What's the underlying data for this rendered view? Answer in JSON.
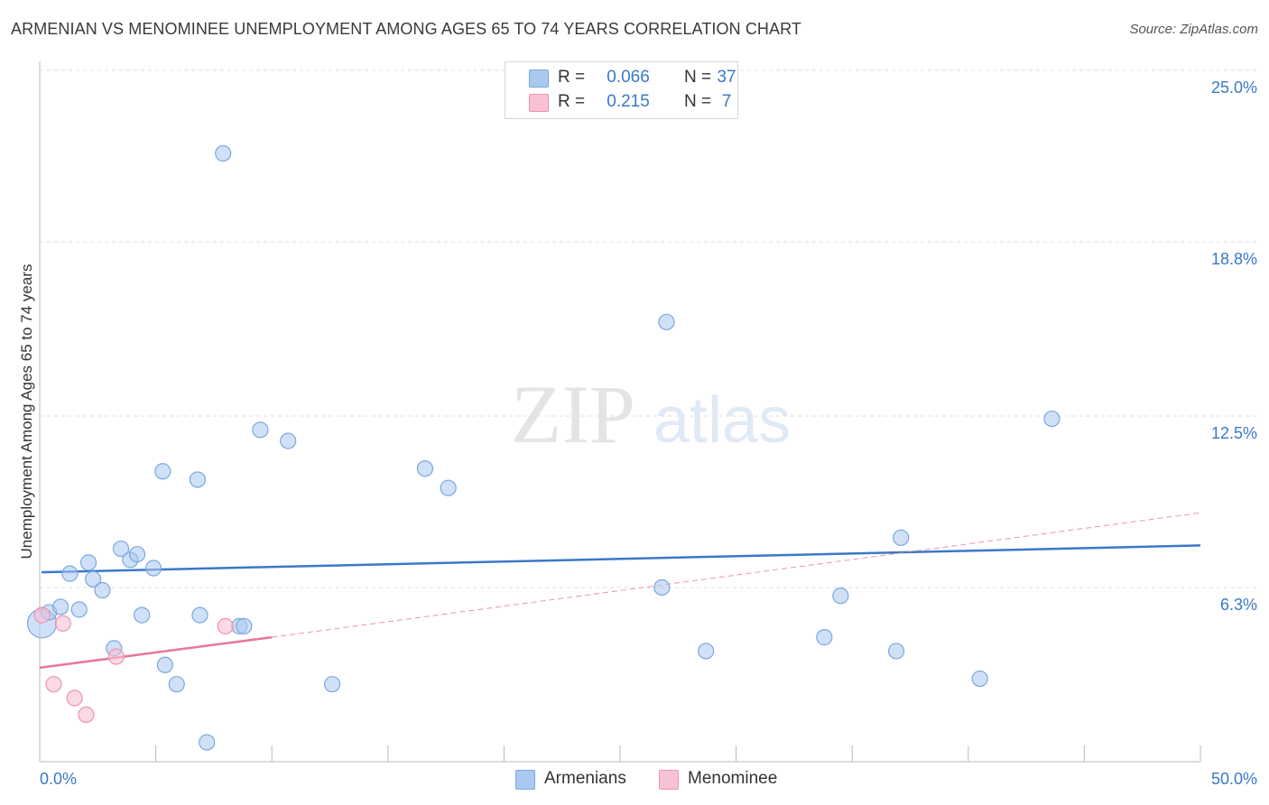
{
  "title": "ARMENIAN VS MENOMINEE UNEMPLOYMENT AMONG AGES 65 TO 74 YEARS CORRELATION CHART",
  "source": "Source: ZipAtlas.com",
  "watermark": {
    "zip": "ZIP",
    "atlas": "atlas"
  },
  "legend": {
    "rows": [
      {
        "r_label": "R =",
        "r_value": "0.066",
        "n_label": "N =",
        "n_value": "37",
        "color": "#a9c9f0",
        "border": "#7aa7e0"
      },
      {
        "r_label": "R =",
        "r_value": "0.215",
        "n_label": "N =",
        "n_value": "7",
        "color": "#f9c2d3",
        "border": "#ee93b0"
      }
    ]
  },
  "bottom_legend": [
    {
      "label": "Armenians",
      "color": "#a9c9f0",
      "border": "#7aa7e0"
    },
    {
      "label": "Menominee",
      "color": "#f9c2d3",
      "border": "#ee93b0"
    }
  ],
  "chart_data": {
    "type": "scatter",
    "title": "ARMENIAN VS MENOMINEE UNEMPLOYMENT AMONG AGES 65 TO 74 YEARS CORRELATION CHART",
    "xlabel": "",
    "ylabel": "Unemployment Among Ages 65 to 74 years",
    "xlim": [
      0,
      50
    ],
    "ylim": [
      0,
      25
    ],
    "x_tick_labels": [
      "0.0%",
      "50.0%"
    ],
    "y_ticks": [
      6.3,
      12.5,
      18.8,
      25.0
    ],
    "y_tick_labels": [
      "6.3%",
      "12.5%",
      "18.8%",
      "25.0%"
    ],
    "grid": true,
    "colors": {
      "armenians": "#3a78c9",
      "menominee": "#e8779c",
      "axis_labels": "#3a78c9"
    },
    "series": [
      {
        "name": "Armenians",
        "points": [
          [
            0.1,
            5.0
          ],
          [
            0.4,
            5.4
          ],
          [
            0.9,
            5.6
          ],
          [
            1.3,
            6.8
          ],
          [
            1.7,
            5.5
          ],
          [
            2.1,
            7.2
          ],
          [
            2.3,
            6.6
          ],
          [
            2.7,
            6.2
          ],
          [
            3.2,
            4.1
          ],
          [
            3.5,
            7.7
          ],
          [
            3.9,
            7.3
          ],
          [
            4.2,
            7.5
          ],
          [
            4.4,
            5.3
          ],
          [
            4.9,
            7.0
          ],
          [
            5.3,
            10.5
          ],
          [
            5.4,
            3.5
          ],
          [
            5.9,
            2.8
          ],
          [
            6.8,
            10.2
          ],
          [
            6.9,
            5.3
          ],
          [
            7.2,
            0.7
          ],
          [
            7.9,
            22.0
          ],
          [
            8.6,
            4.9
          ],
          [
            8.8,
            4.9
          ],
          [
            9.5,
            12.0
          ],
          [
            10.7,
            11.6
          ],
          [
            12.6,
            2.8
          ],
          [
            16.6,
            10.6
          ],
          [
            17.6,
            9.9
          ],
          [
            26.8,
            6.3
          ],
          [
            27.0,
            15.9
          ],
          [
            28.7,
            4.0
          ],
          [
            33.8,
            4.5
          ],
          [
            34.5,
            6.0
          ],
          [
            36.9,
            4.0
          ],
          [
            37.1,
            8.1
          ],
          [
            40.5,
            3.0
          ],
          [
            43.6,
            12.4
          ]
        ],
        "trend": {
          "x": [
            0,
            50
          ],
          "y": [
            6.85,
            7.82
          ]
        }
      },
      {
        "name": "Menominee",
        "points": [
          [
            0.1,
            5.3
          ],
          [
            1.0,
            5.0
          ],
          [
            0.6,
            2.8
          ],
          [
            1.5,
            2.3
          ],
          [
            2.0,
            1.7
          ],
          [
            3.3,
            3.8
          ],
          [
            8.0,
            4.9
          ]
        ],
        "trend": {
          "x": [
            0,
            10
          ],
          "y": [
            3.4,
            4.5
          ]
        },
        "trend_dashed": {
          "x": [
            10,
            50
          ],
          "y": [
            4.5,
            9.0
          ]
        }
      }
    ]
  }
}
